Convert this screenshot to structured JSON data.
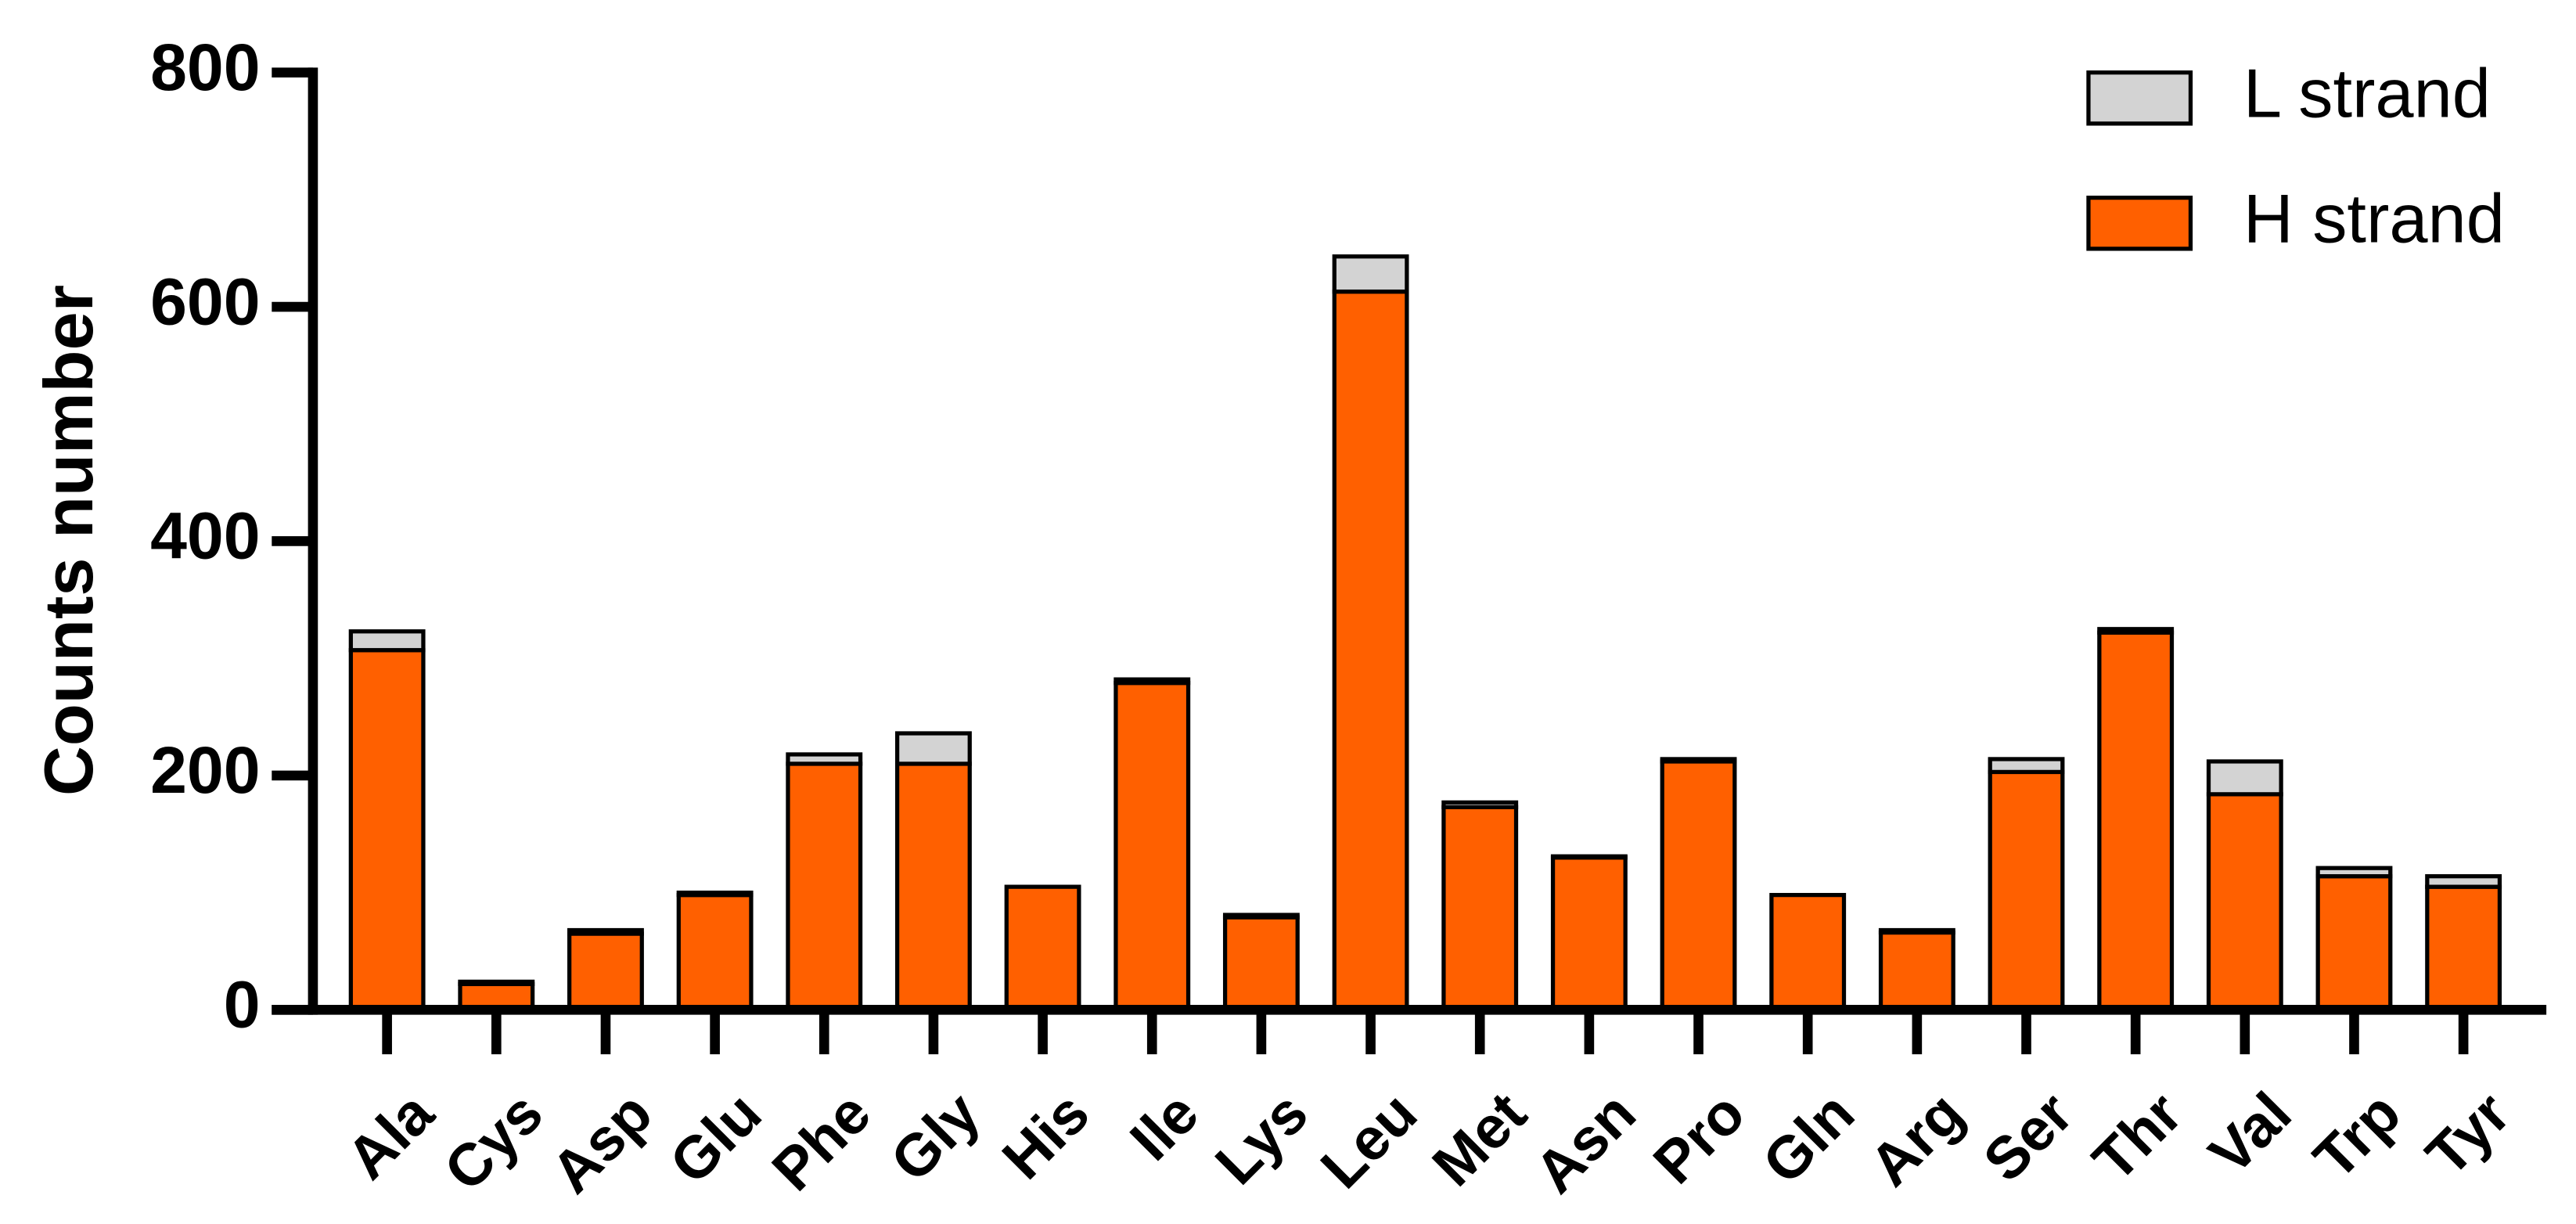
{
  "chart_data": {
    "type": "stacked_bar",
    "y_label": "Counts number",
    "categories": [
      "Ala",
      "Cys",
      "Asp",
      "Glu",
      "Phe",
      "Gly",
      "His",
      "Ile",
      "Lys",
      "Leu",
      "Met",
      "Asn",
      "Pro",
      "Gln",
      "Arg",
      "Ser",
      "Thr",
      "Val",
      "Trp",
      "Tyr"
    ],
    "series": [
      {
        "name": "H strand",
        "color": "#ff6000",
        "values": [
          307,
          22,
          65,
          98,
          210,
          210,
          105,
          279,
          79,
          613,
          173,
          130,
          212,
          98,
          66,
          203,
          322,
          184,
          114,
          105
        ]
      },
      {
        "name": "L strand",
        "color": "#d3d3d3",
        "values": [
          16,
          2,
          3,
          2,
          8,
          26,
          0,
          3,
          2,
          30,
          4,
          1,
          2,
          0,
          2,
          11,
          3,
          28,
          7,
          9
        ]
      }
    ],
    "ylim": [
      0,
      800
    ],
    "yticks": [
      0,
      200,
      400,
      600,
      800
    ],
    "legend": "top-right"
  }
}
